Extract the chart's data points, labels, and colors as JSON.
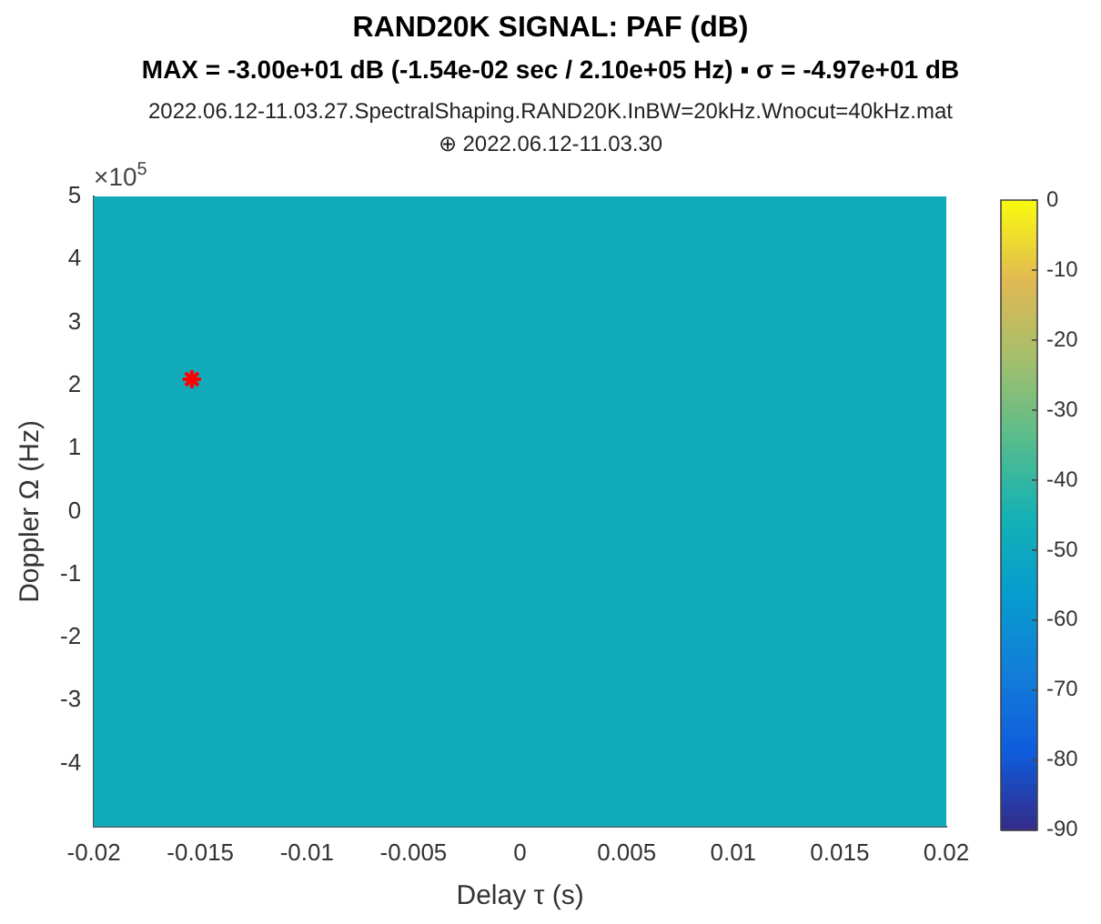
{
  "chart_data": {
    "type": "heatmap",
    "title": "RAND20K SIGNAL: PAF (dB)",
    "subtitle": "MAX = -3.00e+01 dB (-1.54e-02 sec / 2.10e+05 Hz) ▪ σ = -4.97e+01 dB",
    "annotations": [
      "2022.06.12-11.03.27.SpectralShaping.RAND20K.InBW=20kHz.Wnocut=40kHz.mat",
      "⊕ 2022.06.12-11.03.30",
      "×10$^{5}$"
    ],
    "xlabel": "Delay τ (s)",
    "ylabel": "Doppler Ω (Hz)",
    "xlim": [
      -0.02,
      0.02
    ],
    "xticks": [
      -0.02,
      -0.015,
      -0.01,
      -0.005,
      0,
      0.005,
      0.01,
      0.015,
      0.02
    ],
    "ylim": [
      -5,
      5
    ],
    "yticks": [
      -4,
      -3,
      -2,
      -1,
      0,
      1,
      2,
      3,
      4,
      5
    ],
    "cells": [
      [
        -48
      ]
    ],
    "clim": [
      -90,
      0
    ],
    "cticks": [
      -90,
      -80,
      -70,
      -60,
      -50,
      -40,
      -30,
      -20,
      -10,
      0
    ],
    "series": [
      {
        "type": "scatter",
        "x": [
          -0.0154
        ],
        "values": [
          2.1
        ],
        "color": "#ff0000",
        "marker": "cross"
      }
    ],
    "legend": false,
    "grid": false
  }
}
